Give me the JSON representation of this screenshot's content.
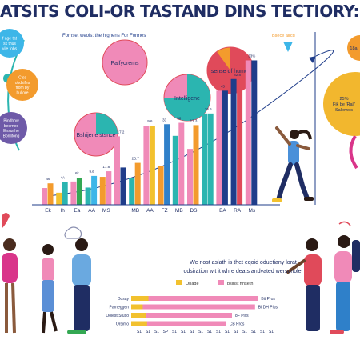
{
  "title": "ATSITS COLI-OR TASTAND DINS TECTIORY:  TO WHER SELA CA",
  "colors": {
    "navy": "#1f3d8a",
    "pink": "#f08ab8",
    "teal": "#2bb5b0",
    "orange": "#f39b2d",
    "blue": "#2f80c9",
    "red": "#e04a5a",
    "magenta": "#d9358a",
    "green": "#34a853",
    "yellow": "#f2c12e"
  },
  "left_bubbles": [
    {
      "lines": [
        "f age tat",
        "sk thus",
        "vile fobs"
      ],
      "color": "#3db6e8"
    },
    {
      "lines": [
        "Ciss",
        "obdsifes",
        "from by",
        "bullore"
      ],
      "color": "#f39b2d"
    },
    {
      "lines": [
        "Bindbow",
        "beerned",
        "Ensunhe",
        "Bonlifong"
      ],
      "color": "#6e5aa8"
    }
  ],
  "main_chart": {
    "subtitle": "Fornset weols: the highens For Formes",
    "bubbles": [
      {
        "label": "Palfyorems",
        "value": 0.0
      },
      {
        "label": "sense of humer",
        "value": 0.9
      },
      {
        "label": "Intelligene",
        "value": 0.75
      },
      {
        "label": "Bshijene stsnce",
        "value": 0.25
      }
    ],
    "top_right_label": "Bsece aircd"
  },
  "chart_data": {
    "type": "bar",
    "categories": [
      "Ek",
      "Ih",
      "Ea",
      "AA",
      "MS",
      "",
      "MB",
      "AA",
      "FZ",
      "MB",
      "DS",
      "",
      "BA",
      "RA",
      "Ms"
    ],
    "values": [
      4.6,
      4.9,
      5.8,
      6.2,
      7.2,
      8.0,
      9.0,
      17.0,
      17.3,
      17.6,
      17.1,
      19.6,
      24.5,
      27.0,
      31.0
    ],
    "value_labels": [
      "46",
      "4A",
      "6k",
      "9.6",
      "17.8",
      "17.2",
      "2B.7",
      "9.6",
      "33",
      "36",
      "17.3",
      "26.6",
      "45",
      "82.8",
      "33%"
    ],
    "series": [
      {
        "values": [
          3.6,
          2.6,
          5.0,
          3.7,
          6.0,
          14.7,
          5.8,
          17.0,
          8.4,
          14.8,
          12.0,
          19.6,
          24.5,
          27.0,
          31.0
        ]
      }
    ],
    "ylim": [
      0,
      34
    ]
  },
  "right_bubbles": [
    {
      "lines": [
        "18a"
      ],
      "color": "#f39b2d"
    },
    {
      "lines": [
        "25%",
        "Fik be 'Rali'",
        "Sallowes"
      ],
      "color": "#f2b72e"
    }
  ],
  "bottom_chart": {
    "heading_line1": "We nost aslath is thet eqoid oduetiany lorat",
    "heading_line2": "odsiration wit it whre deats andvated wersonole.",
    "legend": [
      "Oriade",
      "bsihst fthseth"
    ],
    "chart_data": {
      "type": "bar",
      "categories": [
        "Dusay",
        "Parneggen",
        "Oolest Stuso",
        "Orsimo"
      ],
      "series": [
        {
          "name": "Oriade",
          "values": [
            12,
            8,
            10,
            11
          ]
        },
        {
          "name": "bsihst fthseth",
          "values": [
            88,
            86,
            70,
            66
          ]
        }
      ],
      "value_labels": [
        "Bit Pros",
        "Bi DH Plus",
        "8F Pilfs",
        "CB Pros"
      ],
      "x_ticks": [
        "S1",
        "S1",
        "S1",
        "SP",
        "S1",
        "S1",
        "S1",
        "S1",
        "S1",
        "S1",
        "S1",
        "S1",
        "S1",
        "S1",
        "S1",
        "S1"
      ]
    }
  }
}
